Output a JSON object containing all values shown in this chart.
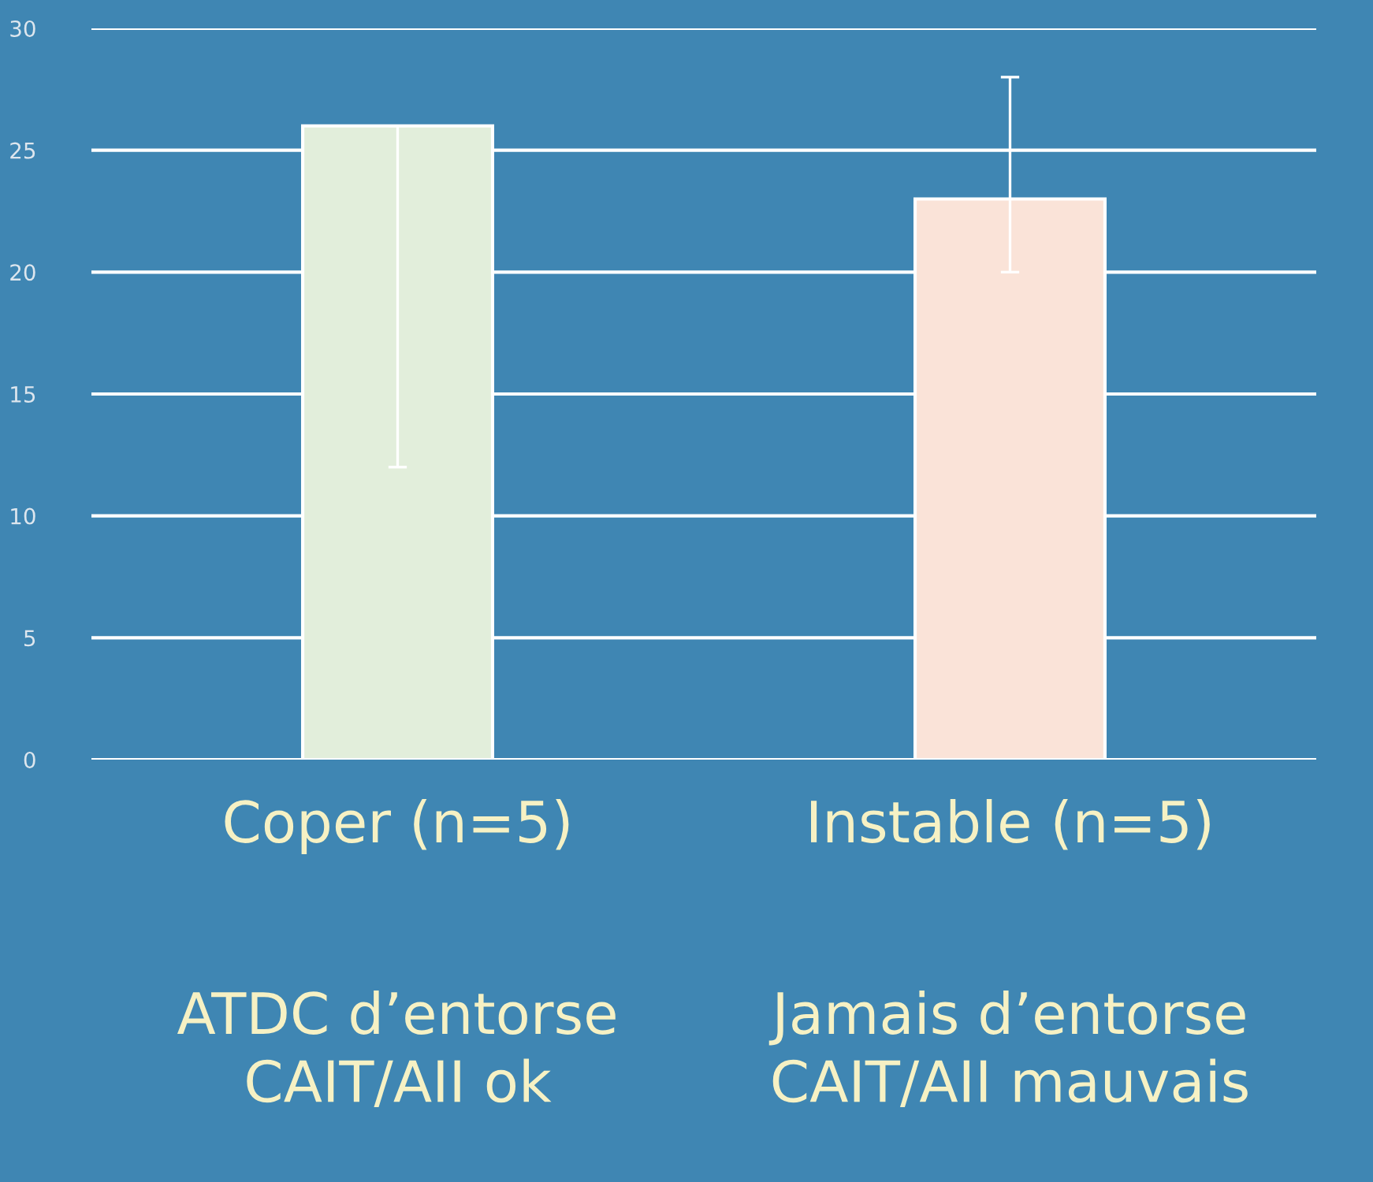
{
  "chart_data": {
    "type": "bar",
    "categories": [
      "Coper (n=5)",
      "Instable (n=5)"
    ],
    "values": [
      26,
      23
    ],
    "colors": [
      "#e2eedb",
      "#fae3d8"
    ],
    "errors": [
      [
        12,
        26
      ],
      [
        20,
        28
      ]
    ],
    "ylim": [
      0,
      30
    ],
    "yticks": [
      0,
      5,
      10,
      15,
      20,
      25,
      30
    ],
    "grid": "y",
    "annotations": [
      "ATDC d’entorse\nCAIT/AII ok",
      "Jamais d’entorse\nCAIT/AII mauvais"
    ]
  }
}
